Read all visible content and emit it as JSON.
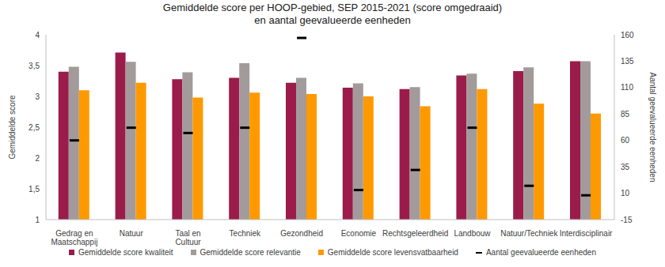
{
  "chart_data": {
    "type": "bar",
    "title": [
      "Gemiddelde score per HOOP-gebied, SEP 2015-2021 (score omgedraaid)",
      "en aantal geevalueerde eenheden"
    ],
    "y_label": "Gemiddelde score",
    "y2_label": "Aantal geevalueerde eenheden",
    "categories": [
      "Gedrag en Maatschappij",
      "Natuur",
      "Taal en Cultuur",
      "Techniek",
      "Gezondheid",
      "Economie",
      "Rechtsgeleerdheid",
      "Landbouw",
      "Natuur/Techniek",
      "Interdisciplinair"
    ],
    "series": [
      {
        "name": "Gemiddelde score kwaliteit",
        "type": "bar",
        "color": "#9b1c4a",
        "values": [
          3.4,
          3.71,
          3.28,
          3.3,
          3.22,
          3.14,
          3.12,
          3.34,
          3.41,
          3.57
        ]
      },
      {
        "name": "Gemiddelde score relevantie",
        "type": "bar",
        "color": "#a39b9b",
        "values": [
          3.48,
          3.56,
          3.39,
          3.54,
          3.3,
          3.21,
          3.15,
          3.37,
          3.47,
          3.57
        ]
      },
      {
        "name": "Gemiddelde score levensvatbaarheid",
        "type": "bar",
        "color": "#ff9900",
        "values": [
          3.1,
          3.22,
          2.98,
          3.06,
          3.04,
          3.0,
          2.84,
          3.12,
          2.88,
          2.72
        ]
      },
      {
        "name": "Aantal geevalueerde eenheden",
        "type": "scatter",
        "marker": "dash",
        "axis": "y2",
        "color": "#000000",
        "values": [
          60,
          72,
          67,
          72,
          157,
          13,
          32,
          72,
          17,
          8
        ]
      }
    ],
    "ylim": [
      1,
      4
    ],
    "yticks": [
      1,
      {
        "value": 1.5,
        "label": "1,5"
      },
      2,
      {
        "value": 2.5,
        "label": "2,5"
      },
      3,
      {
        "value": 3.5,
        "label": "3,5"
      },
      4
    ],
    "y2lim": [
      -15,
      160
    ],
    "y2ticks": [
      -15,
      10,
      35,
      60,
      85,
      110,
      135,
      160
    ],
    "grid": false,
    "legend": "bottom"
  }
}
